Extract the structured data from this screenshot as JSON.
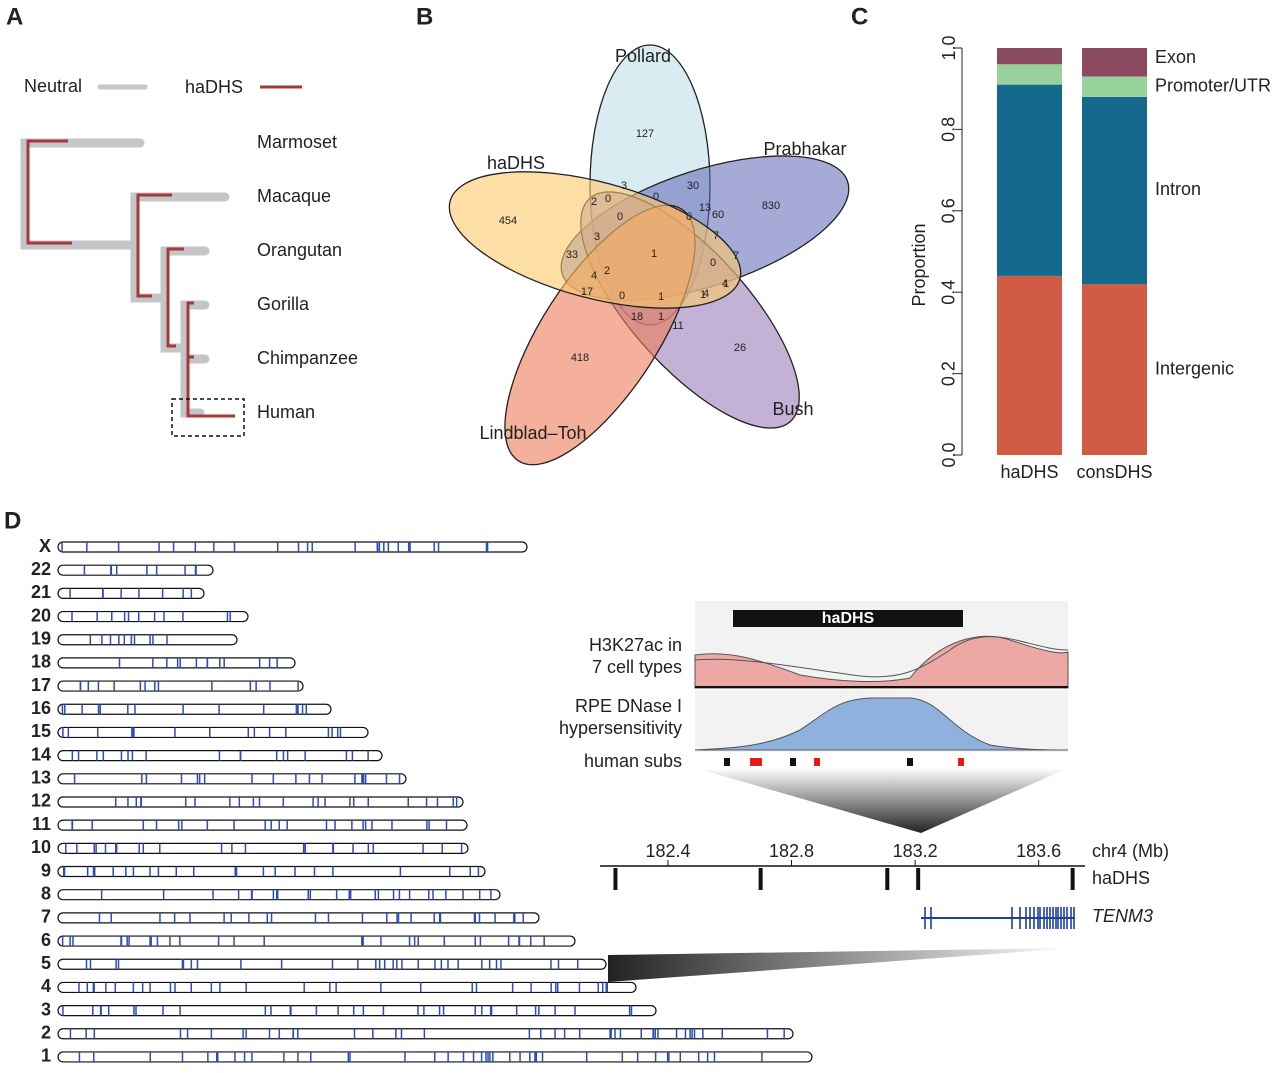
{
  "panel_a": {
    "label": "A",
    "legend": [
      "Neutral",
      "haDHS"
    ],
    "species": [
      "Marmoset",
      "Macaque",
      "Orangutan",
      "Gorilla",
      "Chimpanzee",
      "Human"
    ]
  },
  "panel_b": {
    "label": "B",
    "sets": [
      "Pollard",
      "Prabhakar",
      "Bush",
      "Lindblad–Toh",
      "haDHS"
    ],
    "counts": [
      127,
      30,
      830,
      454,
      3,
      0,
      2,
      0,
      0,
      13,
      60,
      0,
      7,
      3,
      33,
      1,
      0,
      7,
      4,
      1,
      4,
      2,
      17,
      0,
      1,
      1,
      4,
      18,
      1,
      11,
      418,
      26
    ]
  },
  "chart_data": {
    "type": "bar",
    "label": "C",
    "y_label": "Proportion",
    "categories": [
      "haDHS",
      "consDHS"
    ],
    "series": [
      {
        "name": "Intergenic",
        "color": "#d05c46",
        "values": [
          0.44,
          0.42
        ]
      },
      {
        "name": "Intron",
        "color": "#15698c",
        "values": [
          0.47,
          0.46
        ]
      },
      {
        "name": "Promoter/UTR",
        "color": "#98d29b",
        "values": [
          0.05,
          0.05
        ]
      },
      {
        "name": "Exon",
        "color": "#8c4a60",
        "values": [
          0.04,
          0.07
        ]
      }
    ],
    "stacked": true,
    "ylim": [
      0,
      1
    ],
    "yticks": [
      {
        "value": 0,
        "label": "0.0"
      },
      0.2,
      0.4,
      0.6,
      0.8,
      {
        "value": 1,
        "label": "1.0"
      }
    ]
  },
  "panel_d": {
    "label": "D",
    "chromosomes": [
      "X",
      "22",
      "21",
      "20",
      "19",
      "18",
      "17",
      "16",
      "15",
      "14",
      "13",
      "12",
      "11",
      "10",
      "9",
      "8",
      "7",
      "6",
      "5",
      "4",
      "3",
      "2",
      "1"
    ],
    "inset": {
      "region": "haDHS",
      "tracks": [
        [
          "H3K27ac in",
          "7 cell types"
        ],
        [
          "RPE DNase I",
          "hypersensitivity"
        ],
        [
          "human subs"
        ]
      ],
      "axis_label": "chr4 (Mb)",
      "xlim": [
        182.18,
        183.75
      ],
      "xticks": [
        182.4,
        182.8,
        183.2,
        183.6
      ],
      "haDHS_track": "haDHS",
      "haDHS_positions": [
        182.23,
        182.7,
        183.11,
        183.21,
        183.71
      ],
      "gene": "TENM3"
    }
  }
}
